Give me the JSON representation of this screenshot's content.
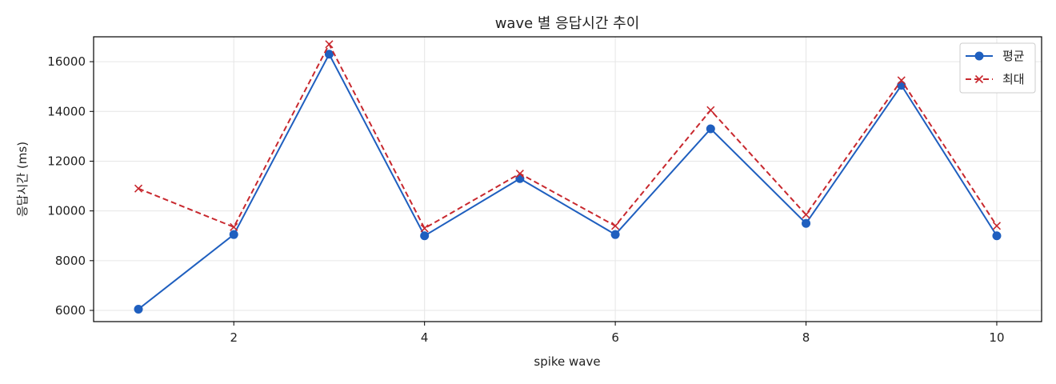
{
  "chart_data": {
    "type": "line",
    "title": "wave 별 응답시간 추이",
    "xlabel": "spike wave",
    "ylabel": "응답시간 (ms)",
    "x": [
      1,
      2,
      3,
      4,
      5,
      6,
      7,
      8,
      9,
      10
    ],
    "xlim": [
      0.53,
      10.47
    ],
    "ylim": [
      5550,
      17000
    ],
    "xticks": [
      2,
      4,
      6,
      8,
      10
    ],
    "yticks": [
      6000,
      8000,
      10000,
      12000,
      14000,
      16000
    ],
    "grid": true,
    "legend_position": "top-right",
    "series": [
      {
        "name": "평균",
        "color": "#1f5fbf",
        "line_style": "solid",
        "marker": "circle",
        "values": [
          6050,
          9050,
          16300,
          9000,
          11300,
          9050,
          13300,
          9500,
          15050,
          9000
        ]
      },
      {
        "name": "최대",
        "color": "#c8282e",
        "line_style": "dashed",
        "marker": "x",
        "values": [
          10900,
          9350,
          16700,
          9300,
          11500,
          9400,
          14050,
          9850,
          15250,
          9400
        ]
      }
    ]
  }
}
